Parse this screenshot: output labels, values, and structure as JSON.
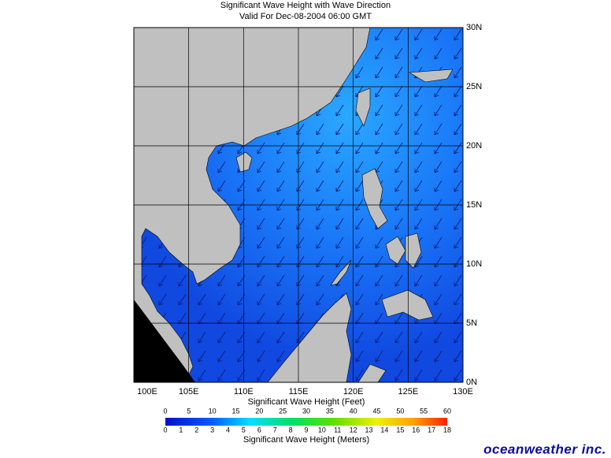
{
  "header": {
    "title": "Significant Wave Height with Wave Direction",
    "subtitle": "Valid For Dec-08-2004 06:00 GMT"
  },
  "map": {
    "lon_ticks": [
      {
        "value": 100,
        "label": "100E"
      },
      {
        "value": 105,
        "label": "105E"
      },
      {
        "value": 110,
        "label": "110E"
      },
      {
        "value": 115,
        "label": "115E"
      },
      {
        "value": 120,
        "label": "120E"
      },
      {
        "value": 125,
        "label": "125E"
      },
      {
        "value": 130,
        "label": "130E"
      }
    ],
    "lat_ticks": [
      {
        "value": 0,
        "label": "0N"
      },
      {
        "value": 5,
        "label": "5N"
      },
      {
        "value": 10,
        "label": "10N"
      },
      {
        "value": 15,
        "label": "15N"
      },
      {
        "value": 20,
        "label": "20N"
      },
      {
        "value": 25,
        "label": "25N"
      },
      {
        "value": 30,
        "label": "30N"
      }
    ]
  },
  "legend": {
    "feet_title": "Significant Wave Height (Feet)",
    "feet_labels": [
      0,
      5,
      10,
      15,
      20,
      25,
      30,
      35,
      40,
      45,
      50,
      55,
      60
    ],
    "meters_title": "Significant Wave Height (Meters)",
    "meters_labels": [
      0,
      1,
      2,
      3,
      4,
      5,
      6,
      7,
      8,
      9,
      10,
      11,
      12,
      13,
      14,
      15,
      16,
      17,
      18
    ]
  },
  "logo": "oceanweather inc."
}
